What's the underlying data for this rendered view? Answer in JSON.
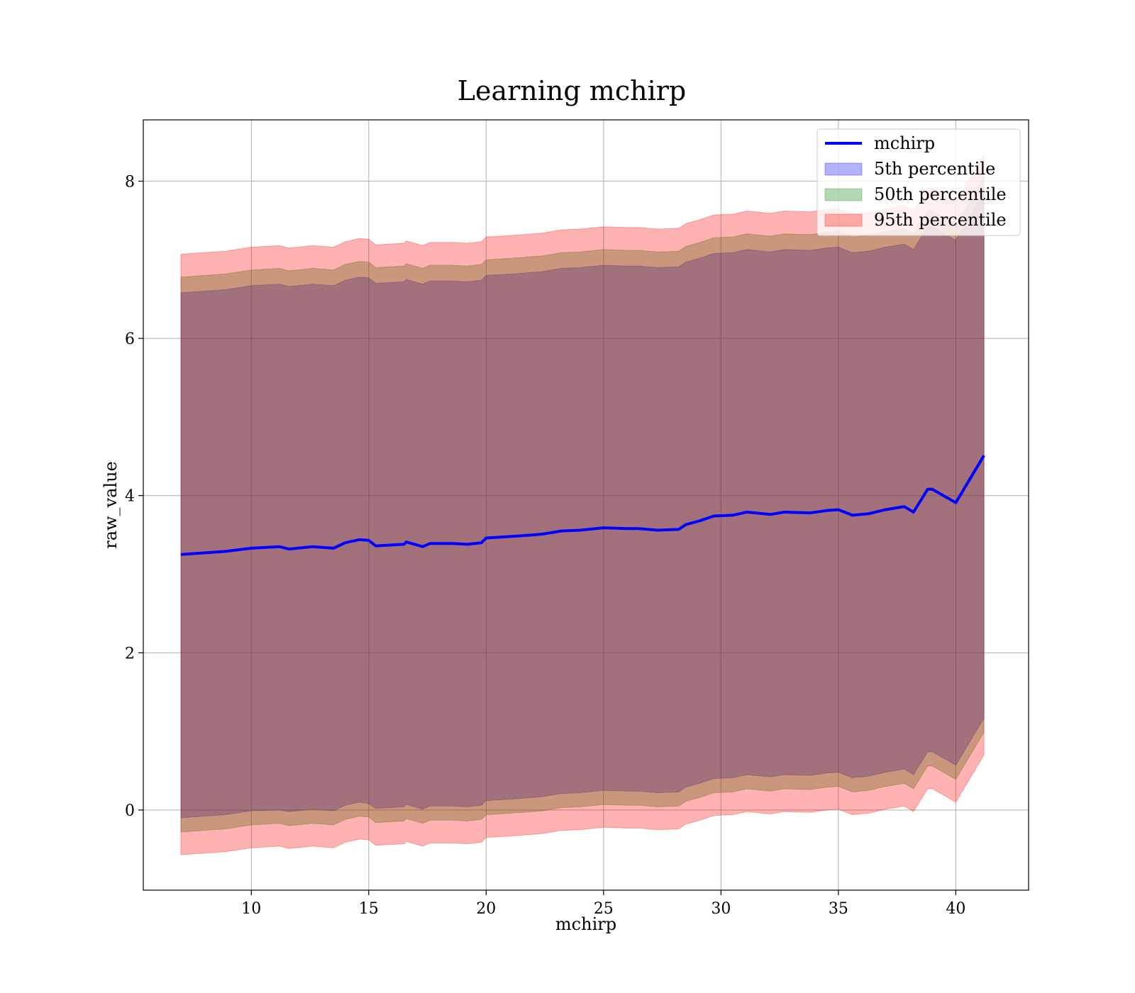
{
  "chart_data": {
    "type": "area",
    "title": "Learning mchirp",
    "xlabel": "mchirp",
    "ylabel": "raw_value",
    "xlim": [
      5.4,
      43.1
    ],
    "ylim": [
      -1.02,
      8.78
    ],
    "xticks": [
      10,
      15,
      20,
      25,
      30,
      35,
      40
    ],
    "yticks": [
      0,
      2,
      4,
      6,
      8
    ],
    "grid": true,
    "legend_position": "top-right",
    "x": [
      7.0,
      8.9,
      10.0,
      11.2,
      11.6,
      12.3,
      12.6,
      13.5,
      14.0,
      14.6,
      15.0,
      15.3,
      16.5,
      16.6,
      17.3,
      17.6,
      18.6,
      19.2,
      19.8,
      20.0,
      21.1,
      22.0,
      22.4,
      23.2,
      24.0,
      25.0,
      26.0,
      26.5,
      27.3,
      28.2,
      28.5,
      29.1,
      29.7,
      30.5,
      31.1,
      32.1,
      32.7,
      33.8,
      34.5,
      35.0,
      35.6,
      36.3,
      37.0,
      37.8,
      38.2,
      38.8,
      39.0,
      40.0,
      41.2
    ],
    "series": [
      {
        "name": "mchirp",
        "kind": "line",
        "color": "#0000ff",
        "y": [
          3.25,
          3.29,
          3.33,
          3.35,
          3.32,
          3.34,
          3.35,
          3.33,
          3.4,
          3.44,
          3.43,
          3.36,
          3.38,
          3.41,
          3.35,
          3.39,
          3.39,
          3.38,
          3.4,
          3.46,
          3.48,
          3.5,
          3.51,
          3.55,
          3.56,
          3.59,
          3.58,
          3.58,
          3.56,
          3.57,
          3.63,
          3.68,
          3.74,
          3.75,
          3.79,
          3.76,
          3.79,
          3.78,
          3.81,
          3.82,
          3.75,
          3.77,
          3.82,
          3.86,
          3.79,
          4.08,
          4.08,
          3.91,
          4.51
        ]
      },
      {
        "name": "5th percentile",
        "kind": "band",
        "color": "#0000ff",
        "lower": [
          -0.1,
          -0.06,
          -0.01,
          0.0,
          -0.02,
          0.0,
          0.01,
          -0.01,
          0.06,
          0.1,
          0.08,
          0.02,
          0.04,
          0.07,
          0.01,
          0.05,
          0.05,
          0.04,
          0.06,
          0.12,
          0.14,
          0.16,
          0.17,
          0.21,
          0.22,
          0.25,
          0.24,
          0.24,
          0.22,
          0.23,
          0.29,
          0.34,
          0.4,
          0.41,
          0.45,
          0.42,
          0.45,
          0.44,
          0.47,
          0.48,
          0.41,
          0.43,
          0.48,
          0.52,
          0.45,
          0.74,
          0.74,
          0.57,
          1.17
        ],
        "upper": [
          6.58,
          6.62,
          6.67,
          6.69,
          6.66,
          6.68,
          6.69,
          6.67,
          6.74,
          6.78,
          6.77,
          6.7,
          6.72,
          6.75,
          6.69,
          6.73,
          6.73,
          6.72,
          6.74,
          6.8,
          6.82,
          6.84,
          6.85,
          6.89,
          6.9,
          6.93,
          6.92,
          6.92,
          6.9,
          6.91,
          6.97,
          7.02,
          7.08,
          7.09,
          7.13,
          7.1,
          7.13,
          7.12,
          7.15,
          7.16,
          7.09,
          7.11,
          7.16,
          7.2,
          7.13,
          7.42,
          7.42,
          7.25,
          7.85
        ]
      },
      {
        "name": "50th percentile",
        "kind": "band",
        "color": "#008000",
        "lower": [
          -0.28,
          -0.24,
          -0.19,
          -0.17,
          -0.2,
          -0.18,
          -0.17,
          -0.19,
          -0.12,
          -0.08,
          -0.09,
          -0.16,
          -0.14,
          -0.11,
          -0.17,
          -0.13,
          -0.13,
          -0.14,
          -0.12,
          -0.06,
          -0.04,
          -0.02,
          -0.01,
          0.03,
          0.04,
          0.07,
          0.06,
          0.06,
          0.04,
          0.05,
          0.11,
          0.16,
          0.22,
          0.23,
          0.27,
          0.24,
          0.27,
          0.26,
          0.29,
          0.3,
          0.23,
          0.25,
          0.3,
          0.34,
          0.27,
          0.56,
          0.56,
          0.39,
          0.99
        ],
        "upper": [
          6.78,
          6.82,
          6.87,
          6.89,
          6.86,
          6.88,
          6.89,
          6.87,
          6.94,
          6.98,
          6.97,
          6.9,
          6.92,
          6.95,
          6.89,
          6.93,
          6.93,
          6.92,
          6.94,
          7.0,
          7.02,
          7.04,
          7.05,
          7.09,
          7.1,
          7.13,
          7.12,
          7.12,
          7.1,
          7.11,
          7.17,
          7.22,
          7.28,
          7.29,
          7.33,
          7.3,
          7.33,
          7.32,
          7.35,
          7.36,
          7.29,
          7.31,
          7.36,
          7.4,
          7.33,
          7.62,
          7.62,
          7.45,
          8.05
        ]
      },
      {
        "name": "95th percentile",
        "kind": "band",
        "color": "#ff0000",
        "lower": [
          -0.57,
          -0.53,
          -0.48,
          -0.46,
          -0.49,
          -0.47,
          -0.46,
          -0.48,
          -0.41,
          -0.37,
          -0.38,
          -0.45,
          -0.43,
          -0.4,
          -0.46,
          -0.42,
          -0.42,
          -0.43,
          -0.41,
          -0.35,
          -0.33,
          -0.31,
          -0.3,
          -0.26,
          -0.25,
          -0.22,
          -0.23,
          -0.23,
          -0.25,
          -0.24,
          -0.18,
          -0.13,
          -0.07,
          -0.06,
          -0.02,
          -0.05,
          -0.02,
          -0.03,
          0.0,
          0.01,
          -0.06,
          -0.04,
          0.01,
          0.05,
          -0.02,
          0.27,
          0.27,
          0.1,
          0.7
        ],
        "upper": [
          7.07,
          7.11,
          7.16,
          7.18,
          7.15,
          7.17,
          7.18,
          7.16,
          7.23,
          7.27,
          7.26,
          7.19,
          7.21,
          7.24,
          7.18,
          7.22,
          7.22,
          7.21,
          7.23,
          7.29,
          7.31,
          7.33,
          7.34,
          7.38,
          7.39,
          7.42,
          7.41,
          7.41,
          7.39,
          7.4,
          7.46,
          7.51,
          7.57,
          7.58,
          7.62,
          7.59,
          7.62,
          7.61,
          7.64,
          7.65,
          7.58,
          7.6,
          7.65,
          7.69,
          7.62,
          7.91,
          7.91,
          7.74,
          8.34
        ]
      }
    ]
  }
}
